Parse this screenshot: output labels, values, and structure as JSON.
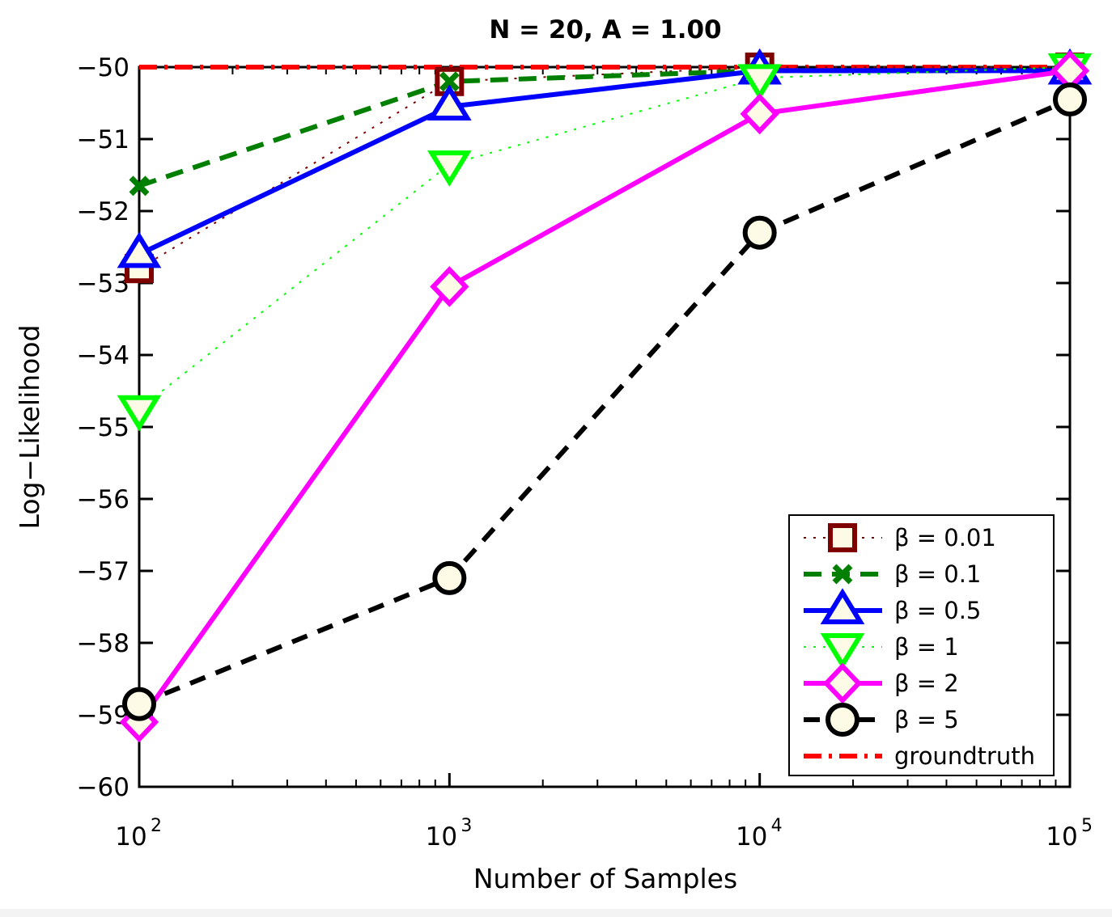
{
  "chart_data": {
    "type": "line",
    "title": "N = 20, A = 1.00",
    "xlabel": "Number of Samples",
    "ylabel": "Log−Likelihood",
    "xscale": "log",
    "x": [
      100,
      1000,
      10000,
      100000
    ],
    "xtick_labels": [
      {
        "base": "10",
        "exp": "2"
      },
      {
        "base": "10",
        "exp": "3"
      },
      {
        "base": "10",
        "exp": "4"
      },
      {
        "base": "10",
        "exp": "5"
      }
    ],
    "xlim": [
      100,
      100000
    ],
    "ylim": [
      -60,
      -50
    ],
    "yticks": [
      -50,
      -51,
      -52,
      -53,
      -54,
      -55,
      -56,
      -57,
      -58,
      -59,
      -60
    ],
    "ytick_labels": [
      "−50",
      "−51",
      "−52",
      "−53",
      "−54",
      "−55",
      "−56",
      "−57",
      "−58",
      "−59",
      "−60"
    ],
    "legend_position": "bottom-right",
    "grid": false,
    "series": [
      {
        "name": "β = 0.01",
        "values": [
          -52.8,
          -50.2,
          -50.0,
          -50.0
        ],
        "color": "#7f0000",
        "dash": "3,9",
        "width": 2,
        "marker": "square"
      },
      {
        "name": "β = 0.1",
        "values": [
          -51.65,
          -50.2,
          -50.05,
          -50.05
        ],
        "color": "#007f00",
        "dash": "22,13",
        "width": 6,
        "marker": "x"
      },
      {
        "name": "β = 0.5",
        "values": [
          -52.6,
          -50.55,
          -50.05,
          -50.05
        ],
        "color": "#0000ff",
        "dash": "",
        "width": 6,
        "marker": "triangle-up"
      },
      {
        "name": "β = 1",
        "values": [
          -54.75,
          -51.35,
          -50.15,
          -50.0
        ],
        "color": "#00ff00",
        "dash": "3,9",
        "width": 2,
        "marker": "triangle-down"
      },
      {
        "name": "β = 2",
        "values": [
          -59.1,
          -53.05,
          -50.65,
          -50.05
        ],
        "color": "#ff00ff",
        "dash": "",
        "width": 6,
        "marker": "diamond"
      },
      {
        "name": "β = 5",
        "values": [
          -58.85,
          -57.1,
          -52.3,
          -50.45
        ],
        "color": "#000000",
        "dash": "20,14",
        "width": 6,
        "marker": "circle"
      },
      {
        "name": "groundtruth",
        "values": [
          -50.0,
          -50.0,
          -50.0,
          -50.0
        ],
        "color": "#ff0000",
        "dash": "22,9,4,9",
        "width": 6,
        "marker": "none"
      }
    ]
  },
  "colors": {
    "marker_fill": "#fdfbe6",
    "axis": "#000000",
    "background": "#ffffff"
  }
}
